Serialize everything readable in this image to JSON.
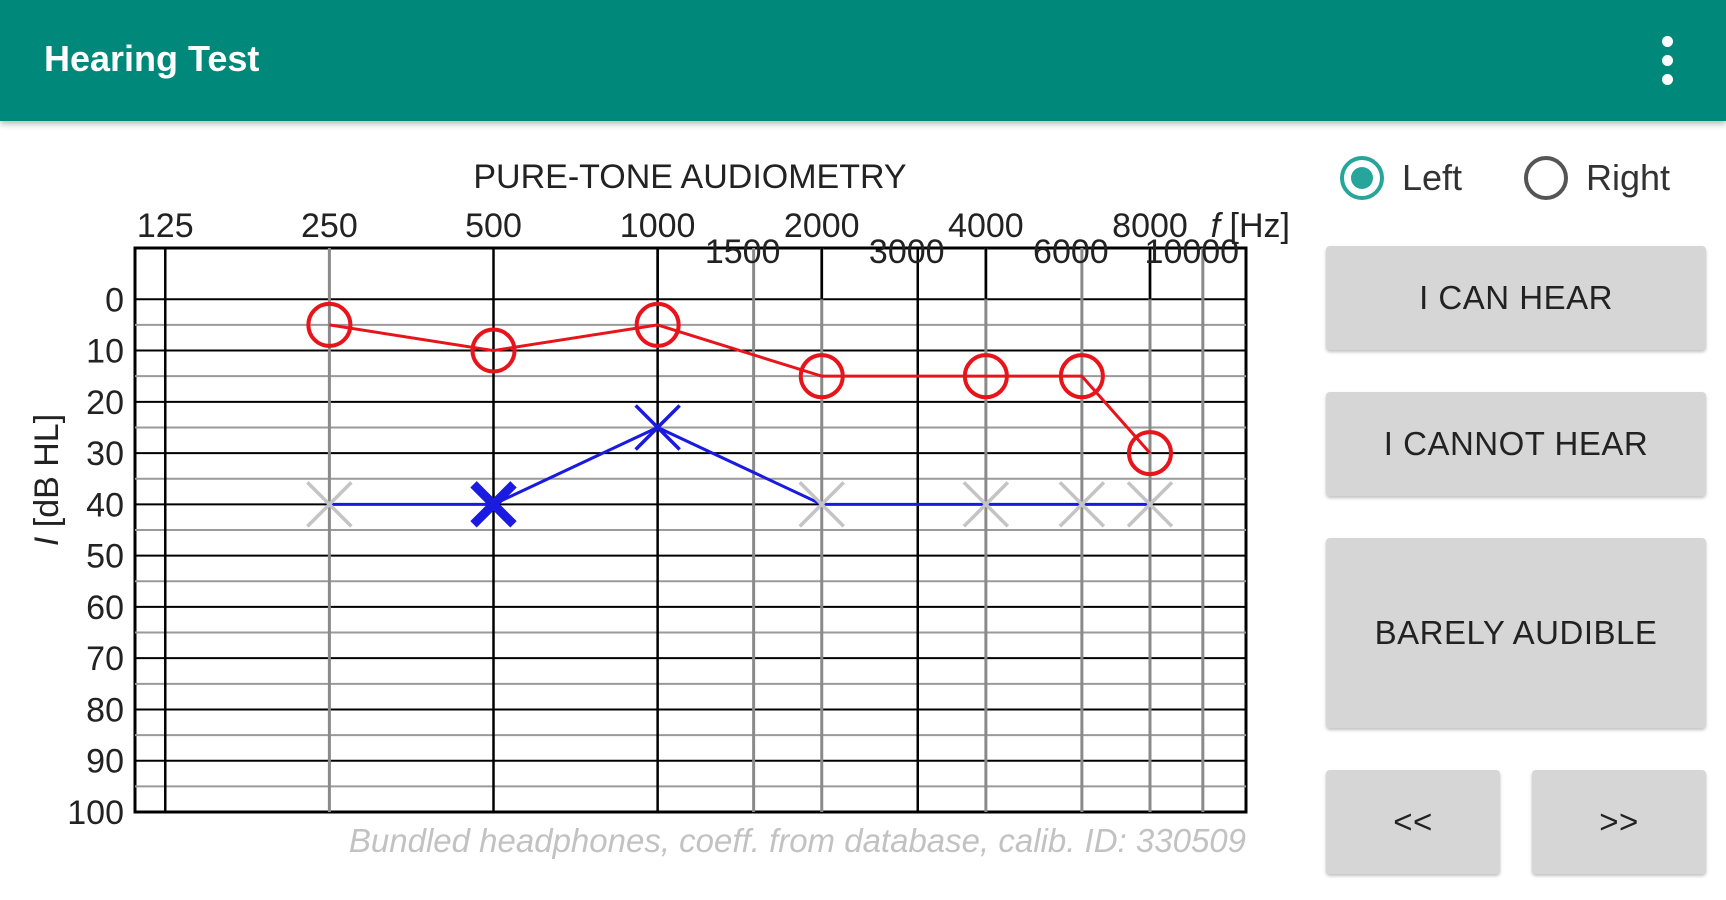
{
  "app": {
    "title": "Hearing Test",
    "menu_icon": "more-vert-icon"
  },
  "ear_selector": {
    "options": [
      {
        "label": "Left",
        "checked": true
      },
      {
        "label": "Right",
        "checked": false
      }
    ]
  },
  "buttons": {
    "can_hear": "I CAN HEAR",
    "cannot_hear": "I CANNOT HEAR",
    "barely_audible": "BARELY AUDIBLE",
    "previous": "<<",
    "next": ">>"
  },
  "colors": {
    "appbar": "#00897b",
    "accent": "#26a69a",
    "right_ear": "#e8141c",
    "left_ear": "#1a1ae0",
    "pending_marker": "#c4c4c4",
    "button_bg": "#d6d6d6"
  },
  "chart_data": {
    "type": "line",
    "title": "PURE-TONE AUDIOMETRY",
    "xlabel_italic": "f",
    "xlabel_rest": " [Hz]",
    "ylabel_italic": "I",
    "ylabel_rest": " [dB HL]",
    "x_scale": "log",
    "y_inverted": true,
    "ylim": [
      -10,
      100
    ],
    "xlim": [
      110,
      12000
    ],
    "x_ticks_major": [
      125,
      250,
      500,
      1000,
      2000,
      4000,
      8000
    ],
    "x_ticks_minor": [
      1500,
      3000,
      6000,
      10000
    ],
    "y_ticks": [
      0,
      10,
      20,
      30,
      40,
      50,
      60,
      70,
      80,
      90,
      100
    ],
    "footnote": "Bundled headphones, coeff. from database, calib. ID: 330509",
    "series": [
      {
        "marker": "circle",
        "x": [
          250,
          500,
          1000,
          2000,
          4000,
          6000,
          8000
        ],
        "y": [
          5,
          10,
          5,
          15,
          15,
          15,
          30
        ]
      },
      {
        "marker": "cross",
        "x": [
          250,
          500,
          1000,
          2000,
          4000,
          6000,
          8000
        ],
        "y": [
          40,
          40,
          25,
          40,
          40,
          40,
          40
        ],
        "marker_state": [
          "pending",
          "current",
          "tested",
          "pending",
          "pending",
          "pending",
          "pending"
        ]
      }
    ]
  }
}
